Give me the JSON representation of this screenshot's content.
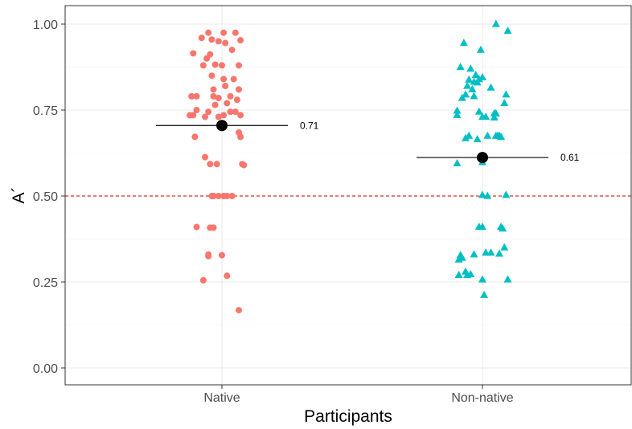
{
  "chart_data": {
    "type": "scatter",
    "xlabel": "Participants",
    "ylabel": "A´",
    "categories": [
      "Native",
      "Non-native"
    ],
    "ylim": [
      -0.05,
      1.05
    ],
    "yticks": [
      0.0,
      0.25,
      0.5,
      0.75,
      1.0
    ],
    "ytick_labels": [
      "0.00",
      "0.25",
      "0.50",
      "0.75",
      "1.00"
    ],
    "grid": true,
    "reference_line": {
      "y": 0.5,
      "style": "dashed",
      "color": "#d9534f"
    },
    "series": [
      {
        "category": "Native",
        "marker": "circle",
        "color": "#F8766D",
        "mean": 0.705,
        "mean_label": "0.71",
        "points": [
          {
            "x": -0.08,
            "y": 0.975
          },
          {
            "x": 0.01,
            "y": 0.975
          },
          {
            "x": 0.08,
            "y": 0.975
          },
          {
            "x": -0.12,
            "y": 0.96
          },
          {
            "x": -0.06,
            "y": 0.955
          },
          {
            "x": 0.11,
            "y": 0.953
          },
          {
            "x": -0.02,
            "y": 0.95
          },
          {
            "x": 0.02,
            "y": 0.945
          },
          {
            "x": -0.17,
            "y": 0.915
          },
          {
            "x": -0.07,
            "y": 0.912
          },
          {
            "x": 0.06,
            "y": 0.925
          },
          {
            "x": -0.09,
            "y": 0.9
          },
          {
            "x": -0.11,
            "y": 0.88
          },
          {
            "x": -0.04,
            "y": 0.882
          },
          {
            "x": 0.0,
            "y": 0.88
          },
          {
            "x": 0.1,
            "y": 0.88
          },
          {
            "x": -0.06,
            "y": 0.85
          },
          {
            "x": 0.01,
            "y": 0.84
          },
          {
            "x": 0.07,
            "y": 0.84
          },
          {
            "x": 0.02,
            "y": 0.82
          },
          {
            "x": -0.05,
            "y": 0.81
          },
          {
            "x": 0.1,
            "y": 0.81
          },
          {
            "x": -0.18,
            "y": 0.79
          },
          {
            "x": -0.15,
            "y": 0.79
          },
          {
            "x": -0.05,
            "y": 0.79
          },
          {
            "x": -0.02,
            "y": 0.785
          },
          {
            "x": 0.05,
            "y": 0.79
          },
          {
            "x": 0.09,
            "y": 0.78
          },
          {
            "x": -0.04,
            "y": 0.765
          },
          {
            "x": 0.03,
            "y": 0.77
          },
          {
            "x": -0.15,
            "y": 0.75
          },
          {
            "x": -0.08,
            "y": 0.745
          },
          {
            "x": 0.05,
            "y": 0.745
          },
          {
            "x": 0.08,
            "y": 0.745
          },
          {
            "x": -0.19,
            "y": 0.735
          },
          {
            "x": -0.17,
            "y": 0.735
          },
          {
            "x": -0.1,
            "y": 0.73
          },
          {
            "x": -0.02,
            "y": 0.73
          },
          {
            "x": 0.01,
            "y": 0.735
          },
          {
            "x": 0.11,
            "y": 0.735
          },
          {
            "x": 0.1,
            "y": 0.685
          },
          {
            "x": -0.16,
            "y": 0.672
          },
          {
            "x": 0.11,
            "y": 0.672
          },
          {
            "x": -0.1,
            "y": 0.613
          },
          {
            "x": -0.07,
            "y": 0.593
          },
          {
            "x": -0.03,
            "y": 0.593
          },
          {
            "x": 0.12,
            "y": 0.593
          },
          {
            "x": 0.13,
            "y": 0.59
          },
          {
            "x": -0.06,
            "y": 0.5
          },
          {
            "x": -0.05,
            "y": 0.5
          },
          {
            "x": -0.02,
            "y": 0.5
          },
          {
            "x": 0.01,
            "y": 0.5
          },
          {
            "x": 0.03,
            "y": 0.5
          },
          {
            "x": 0.06,
            "y": 0.5
          },
          {
            "x": -0.15,
            "y": 0.41
          },
          {
            "x": -0.07,
            "y": 0.408
          },
          {
            "x": -0.05,
            "y": 0.408
          },
          {
            "x": -0.08,
            "y": 0.33
          },
          {
            "x": -0.08,
            "y": 0.325
          },
          {
            "x": 0.0,
            "y": 0.328
          },
          {
            "x": 0.03,
            "y": 0.268
          },
          {
            "x": -0.11,
            "y": 0.255
          },
          {
            "x": 0.1,
            "y": 0.168
          }
        ]
      },
      {
        "category": "Non-native",
        "marker": "triangle",
        "color": "#00BFC4",
        "mean": 0.612,
        "mean_label": "0.61",
        "points": [
          {
            "x": 0.08,
            "y": 1.0
          },
          {
            "x": 0.15,
            "y": 0.98
          },
          {
            "x": -0.11,
            "y": 0.945
          },
          {
            "x": -0.01,
            "y": 0.925
          },
          {
            "x": -0.13,
            "y": 0.875
          },
          {
            "x": -0.07,
            "y": 0.87
          },
          {
            "x": -0.04,
            "y": 0.852
          },
          {
            "x": -0.02,
            "y": 0.84
          },
          {
            "x": -0.08,
            "y": 0.838
          },
          {
            "x": -0.05,
            "y": 0.832
          },
          {
            "x": 0.0,
            "y": 0.845
          },
          {
            "x": -0.03,
            "y": 0.83
          },
          {
            "x": 0.05,
            "y": 0.815
          },
          {
            "x": -0.09,
            "y": 0.82
          },
          {
            "x": -0.06,
            "y": 0.81
          },
          {
            "x": -0.1,
            "y": 0.795
          },
          {
            "x": -0.12,
            "y": 0.785
          },
          {
            "x": -0.05,
            "y": 0.79
          },
          {
            "x": 0.14,
            "y": 0.795
          },
          {
            "x": 0.13,
            "y": 0.77
          },
          {
            "x": -0.15,
            "y": 0.748
          },
          {
            "x": -0.02,
            "y": 0.745
          },
          {
            "x": 0.07,
            "y": 0.74
          },
          {
            "x": 0.08,
            "y": 0.74
          },
          {
            "x": -0.15,
            "y": 0.735
          },
          {
            "x": 0.0,
            "y": 0.73
          },
          {
            "x": 0.02,
            "y": 0.73
          },
          {
            "x": 0.07,
            "y": 0.728
          },
          {
            "x": -0.08,
            "y": 0.675
          },
          {
            "x": 0.03,
            "y": 0.675
          },
          {
            "x": 0.08,
            "y": 0.675
          },
          {
            "x": 0.09,
            "y": 0.675
          },
          {
            "x": 0.1,
            "y": 0.675
          },
          {
            "x": 0.11,
            "y": 0.672
          },
          {
            "x": -0.1,
            "y": 0.668
          },
          {
            "x": -0.03,
            "y": 0.665
          },
          {
            "x": -0.15,
            "y": 0.595
          },
          {
            "x": 0.0,
            "y": 0.598
          },
          {
            "x": 0.0,
            "y": 0.503
          },
          {
            "x": 0.03,
            "y": 0.5
          },
          {
            "x": 0.14,
            "y": 0.503
          },
          {
            "x": -0.02,
            "y": 0.41
          },
          {
            "x": 0.0,
            "y": 0.41
          },
          {
            "x": 0.11,
            "y": 0.41
          },
          {
            "x": 0.12,
            "y": 0.405
          },
          {
            "x": 0.13,
            "y": 0.35
          },
          {
            "x": -0.13,
            "y": 0.328
          },
          {
            "x": -0.12,
            "y": 0.32
          },
          {
            "x": -0.14,
            "y": 0.315
          },
          {
            "x": -0.05,
            "y": 0.33
          },
          {
            "x": 0.02,
            "y": 0.335
          },
          {
            "x": 0.05,
            "y": 0.335
          },
          {
            "x": 0.1,
            "y": 0.332
          },
          {
            "x": -0.14,
            "y": 0.27
          },
          {
            "x": -0.1,
            "y": 0.28
          },
          {
            "x": -0.09,
            "y": 0.27
          },
          {
            "x": -0.07,
            "y": 0.272
          },
          {
            "x": 0.0,
            "y": 0.257
          },
          {
            "x": 0.15,
            "y": 0.257
          },
          {
            "x": 0.01,
            "y": 0.212
          }
        ]
      }
    ]
  }
}
